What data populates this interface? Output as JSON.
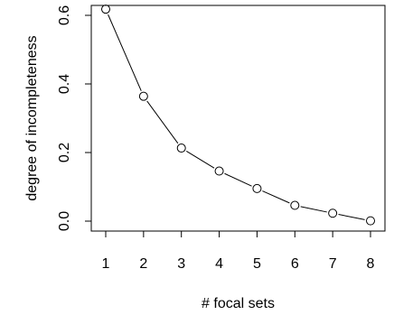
{
  "chart_data": {
    "type": "line",
    "xlabel": "# focal sets",
    "ylabel": "degree of incompleteness",
    "xlim": [
      1,
      8
    ],
    "ylim": [
      0,
      0.6
    ],
    "x_ticks": [
      1,
      2,
      3,
      4,
      5,
      6,
      7,
      8
    ],
    "x_tick_labels": [
      "1",
      "2",
      "3",
      "4",
      "5",
      "6",
      "7",
      "8"
    ],
    "y_ticks": [
      0.0,
      0.2,
      0.4,
      0.6
    ],
    "y_tick_labels": [
      "0.0",
      "0.2",
      "0.4",
      "0.6"
    ],
    "grid": false,
    "marker": "open-circle",
    "line_color": "#000000",
    "series": [
      {
        "x": [
          1,
          2,
          3,
          4,
          5,
          6,
          7,
          8
        ],
        "values": [
          0.618,
          0.364,
          0.213,
          0.146,
          0.095,
          0.046,
          0.023,
          0.001
        ]
      }
    ]
  }
}
